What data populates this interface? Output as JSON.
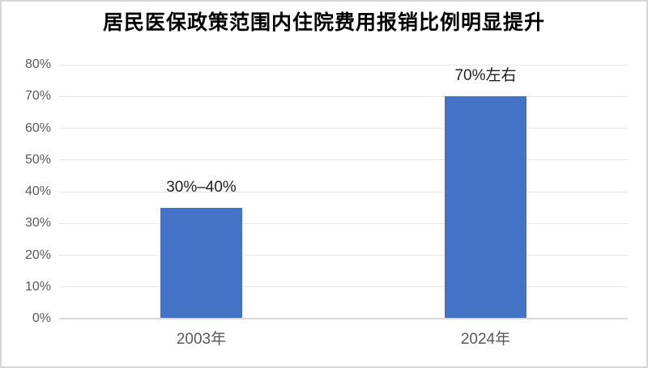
{
  "chart_data": {
    "type": "bar",
    "title": "居民医保政策范围内住院费用报销比例明显提升",
    "categories": [
      "2003年",
      "2024年"
    ],
    "values": [
      35,
      70
    ],
    "bar_labels": [
      "30%–40%",
      "70%左右"
    ],
    "xlabel": "",
    "ylabel": "",
    "ylim": [
      0,
      80
    ],
    "ytick_values": [
      0,
      10,
      20,
      30,
      40,
      50,
      60,
      70,
      80
    ],
    "ytick_labels": [
      "0%",
      "10%",
      "20%",
      "30%",
      "40%",
      "50%",
      "60%",
      "70%",
      "80%"
    ],
    "grid": true,
    "legend": false,
    "colors": {
      "bar": "#4472c4",
      "gridline": "#e6e6e6",
      "axis_line": "#d9d9d9",
      "tick_label": "#595959",
      "data_label": "#1f1f1f",
      "title": "#000000",
      "background": "#ffffff",
      "frame_border": "#d6d6d6"
    }
  }
}
